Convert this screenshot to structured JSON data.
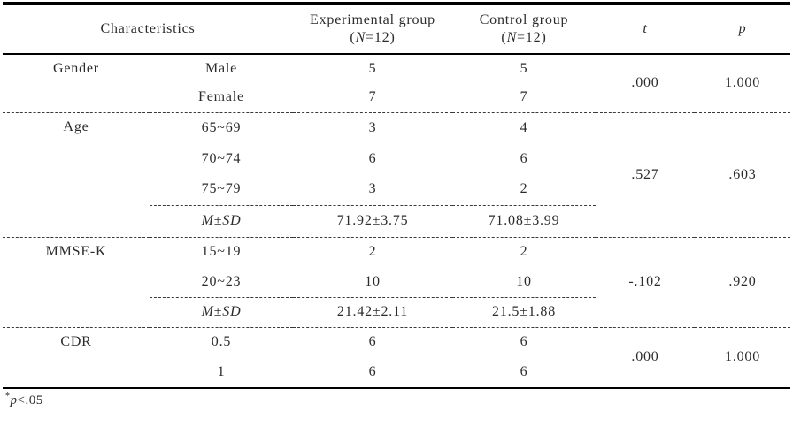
{
  "header": {
    "characteristics": "Characteristics",
    "experimental_line1": "Experimental group",
    "control_line1": "Control group",
    "n_open": "(",
    "n_italic": "N",
    "n_close": "=12)",
    "t": "t",
    "p": "p"
  },
  "msd": {
    "m": "M",
    "pm": "±",
    "sd": "SD"
  },
  "sections": [
    {
      "name": "Gender",
      "t": ".000",
      "p": "1.000",
      "rows": [
        {
          "label": "Male",
          "exp": "5",
          "ctrl": "5"
        },
        {
          "label": "Female",
          "exp": "7",
          "ctrl": "7"
        }
      ]
    },
    {
      "name": "Age",
      "t": ".527",
      "p": ".603",
      "rows": [
        {
          "label": "65~69",
          "exp": "3",
          "ctrl": "4"
        },
        {
          "label": "70~74",
          "exp": "6",
          "ctrl": "6"
        },
        {
          "label": "75~79",
          "exp": "3",
          "ctrl": "2"
        },
        {
          "label": "M±SD",
          "exp": "71.92±3.75",
          "ctrl": "71.08±3.99"
        }
      ]
    },
    {
      "name": "MMSE-K",
      "t": "-.102",
      "p": ".920",
      "rows": [
        {
          "label": "15~19",
          "exp": "2",
          "ctrl": "2"
        },
        {
          "label": "20~23",
          "exp": "10",
          "ctrl": "10"
        },
        {
          "label": "M±SD",
          "exp": "21.42±2.11",
          "ctrl": "21.5±1.88"
        }
      ]
    },
    {
      "name": "CDR",
      "t": ".000",
      "p": "1.000",
      "rows": [
        {
          "label": "0.5",
          "exp": "6",
          "ctrl": "6"
        },
        {
          "label": "1",
          "exp": "6",
          "ctrl": "6"
        }
      ]
    }
  ],
  "footnote": {
    "star": "*",
    "p": "p",
    "rest": "<.05"
  },
  "colors": {
    "text": "#2b2b2b",
    "rule": "#000000",
    "dash": "#3a3a3a",
    "background": "#ffffff"
  }
}
